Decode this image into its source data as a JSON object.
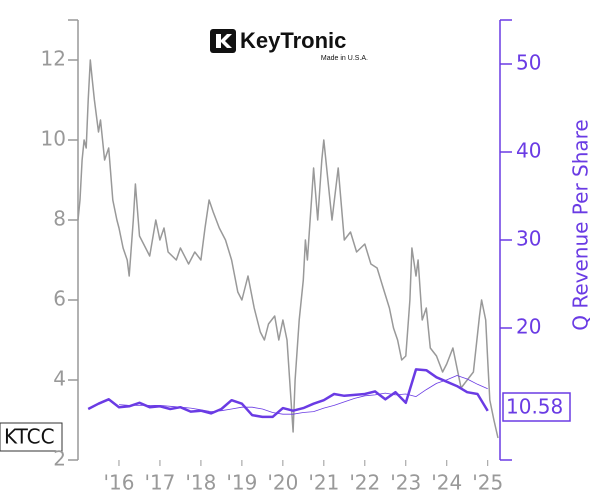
{
  "chart_data": {
    "type": "line",
    "logo": {
      "name": "KeyTronic",
      "tagline": "Made in U.S.A."
    },
    "ticker": "KTCC",
    "y2label": "Q Revenue Per Share",
    "xlim": [
      2015.0,
      2025.3
    ],
    "xticks": [
      {
        "value": 2016,
        "label": "'16"
      },
      {
        "value": 2017,
        "label": "'17"
      },
      {
        "value": 2018,
        "label": "'18"
      },
      {
        "value": 2019,
        "label": "'19"
      },
      {
        "value": 2020,
        "label": "'20"
      },
      {
        "value": 2021,
        "label": "'21"
      },
      {
        "value": 2022,
        "label": "'22"
      },
      {
        "value": 2023,
        "label": "'23"
      },
      {
        "value": 2024,
        "label": "'24"
      },
      {
        "value": 2025,
        "label": "'25"
      }
    ],
    "ylim": [
      2,
      13
    ],
    "yticks": [
      2,
      4,
      6,
      8,
      10,
      12
    ],
    "y2lim": [
      5,
      55
    ],
    "y2ticks": [
      20,
      30,
      40,
      50
    ],
    "series": [
      {
        "color": "#999999",
        "width": 1.5,
        "x": [
          2015.0,
          2015.05,
          2015.1,
          2015.15,
          2015.2,
          2015.25,
          2015.3,
          2015.35,
          2015.4,
          2015.5,
          2015.55,
          2015.65,
          2015.75,
          2015.85,
          2015.95,
          2016.0,
          2016.1,
          2016.2,
          2016.25,
          2016.35,
          2016.4,
          2016.5,
          2016.6,
          2016.75,
          2016.9,
          2017.0,
          2017.1,
          2017.2,
          2017.4,
          2017.5,
          2017.7,
          2017.85,
          2018.0,
          2018.1,
          2018.2,
          2018.3,
          2018.45,
          2018.6,
          2018.75,
          2018.9,
          2019.0,
          2019.15,
          2019.3,
          2019.45,
          2019.55,
          2019.65,
          2019.8,
          2019.9,
          2020.0,
          2020.1,
          2020.2,
          2020.25,
          2020.3,
          2020.4,
          2020.5,
          2020.55,
          2020.6,
          2020.7,
          2020.75,
          2020.85,
          2020.95,
          2021.0,
          2021.1,
          2021.2,
          2021.35,
          2021.5,
          2021.65,
          2021.8,
          2022.0,
          2022.15,
          2022.3,
          2022.45,
          2022.6,
          2022.7,
          2022.8,
          2022.9,
          2023.0,
          2023.1,
          2023.15,
          2023.25,
          2023.3,
          2023.4,
          2023.5,
          2023.6,
          2023.75,
          2023.9,
          2024.0,
          2024.15,
          2024.25,
          2024.35,
          2024.5,
          2024.65,
          2024.8,
          2024.85,
          2024.95,
          2025.0,
          2025.05,
          2025.15,
          2025.25
        ],
        "values": [
          8.0,
          8.5,
          9.5,
          10.0,
          9.8,
          11.0,
          12.0,
          11.5,
          11.0,
          10.2,
          10.5,
          9.5,
          9.8,
          8.5,
          8.0,
          7.8,
          7.3,
          7.0,
          6.6,
          8.0,
          8.9,
          7.6,
          7.4,
          7.1,
          8.0,
          7.5,
          7.8,
          7.2,
          7.0,
          7.3,
          6.9,
          7.2,
          7.0,
          7.8,
          8.5,
          8.2,
          7.8,
          7.5,
          7.0,
          6.2,
          6.0,
          6.6,
          5.8,
          5.2,
          5.0,
          5.4,
          5.6,
          5.0,
          5.5,
          5.0,
          3.5,
          2.7,
          4.0,
          5.5,
          6.5,
          7.5,
          7.0,
          8.5,
          9.3,
          8.0,
          9.5,
          10.0,
          9.0,
          8.0,
          9.3,
          7.5,
          7.7,
          7.2,
          7.4,
          6.9,
          6.8,
          6.3,
          5.8,
          5.3,
          5.0,
          4.5,
          4.6,
          6.0,
          7.3,
          6.6,
          7.0,
          5.5,
          5.8,
          4.8,
          4.6,
          4.2,
          4.4,
          4.8,
          4.3,
          3.8,
          4.0,
          4.2,
          5.6,
          6.0,
          5.5,
          4.5,
          3.5,
          3.0,
          2.55
        ]
      },
      {
        "color": "#6a3be4",
        "width": 0.8,
        "axis": "y2",
        "x": [
          2016.0,
          2016.25,
          2016.5,
          2016.75,
          2017.0,
          2017.25,
          2017.5,
          2017.75,
          2018.0,
          2018.25,
          2018.5,
          2018.75,
          2019.0,
          2019.25,
          2019.5,
          2019.75,
          2020.0,
          2020.25,
          2020.5,
          2020.75,
          2021.0,
          2021.25,
          2021.5,
          2021.75,
          2022.0,
          2022.25,
          2022.5,
          2022.75,
          2023.0,
          2023.25,
          2023.5,
          2023.75,
          2024.0,
          2024.25,
          2024.5,
          2024.75,
          2025.0
        ],
        "values": [
          11.3,
          11.2,
          11.2,
          11.2,
          11.2,
          11.1,
          11.0,
          10.9,
          10.7,
          10.5,
          10.6,
          10.8,
          11.0,
          11.0,
          10.8,
          10.4,
          10.2,
          10.2,
          10.4,
          10.5,
          10.9,
          11.2,
          11.6,
          12.0,
          12.3,
          12.4,
          12.6,
          12.4,
          12.5,
          12.2,
          13.0,
          13.7,
          14.1,
          14.6,
          14.2,
          13.6,
          13.1
        ]
      },
      {
        "color": "#6a3be4",
        "width": 2.5,
        "axis": "y2",
        "x": [
          2015.25,
          2015.5,
          2015.75,
          2016.0,
          2016.25,
          2016.5,
          2016.75,
          2017.0,
          2017.25,
          2017.5,
          2017.75,
          2018.0,
          2018.25,
          2018.5,
          2018.75,
          2019.0,
          2019.25,
          2019.5,
          2019.75,
          2020.0,
          2020.25,
          2020.5,
          2020.75,
          2021.0,
          2021.25,
          2021.5,
          2021.75,
          2022.0,
          2022.25,
          2022.5,
          2022.75,
          2023.0,
          2023.25,
          2023.5,
          2023.75,
          2024.0,
          2024.25,
          2024.5,
          2024.75,
          2025.0
        ],
        "values": [
          10.8,
          11.4,
          11.9,
          11.0,
          11.1,
          11.5,
          11.0,
          11.1,
          10.8,
          11.0,
          10.5,
          10.6,
          10.3,
          10.8,
          11.8,
          11.4,
          10.1,
          9.9,
          9.9,
          10.9,
          10.6,
          10.9,
          11.4,
          11.8,
          12.5,
          12.3,
          12.4,
          12.5,
          12.8,
          11.9,
          12.7,
          11.5,
          15.3,
          15.2,
          14.4,
          13.9,
          13.4,
          12.7,
          12.5,
          10.58
        ]
      }
    ]
  }
}
